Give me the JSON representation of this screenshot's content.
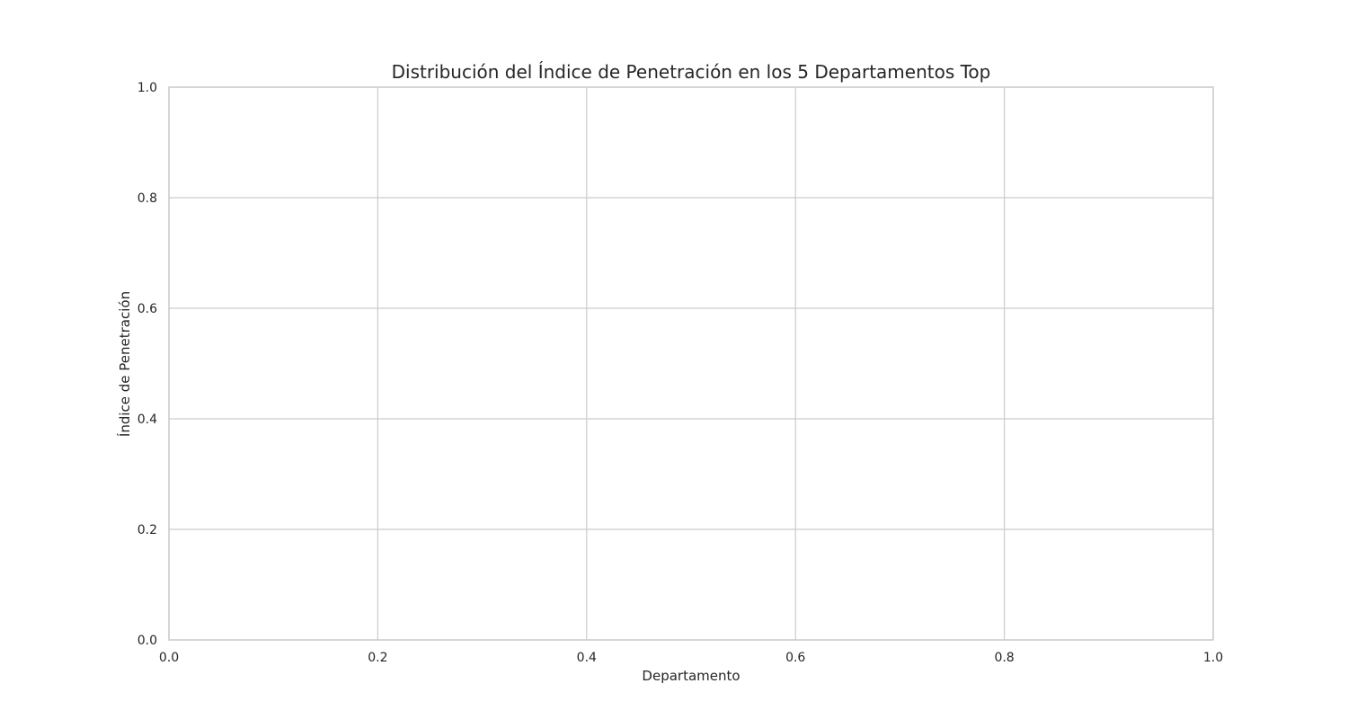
{
  "chart_data": {
    "type": "bar",
    "title": "Distribución del Índice de Penetración en los 5 Departamentos Top",
    "xlabel": "Departamento",
    "ylabel": "Índice de Penetración",
    "xlim": [
      0,
      1
    ],
    "ylim": [
      0,
      1
    ],
    "xticks": [
      "0.0",
      "0.2",
      "0.4",
      "0.6",
      "0.8",
      "1.0"
    ],
    "yticks": [
      "0.0",
      "0.2",
      "0.4",
      "0.6",
      "0.8",
      "1.0"
    ],
    "grid": true,
    "categories": [],
    "values": []
  }
}
